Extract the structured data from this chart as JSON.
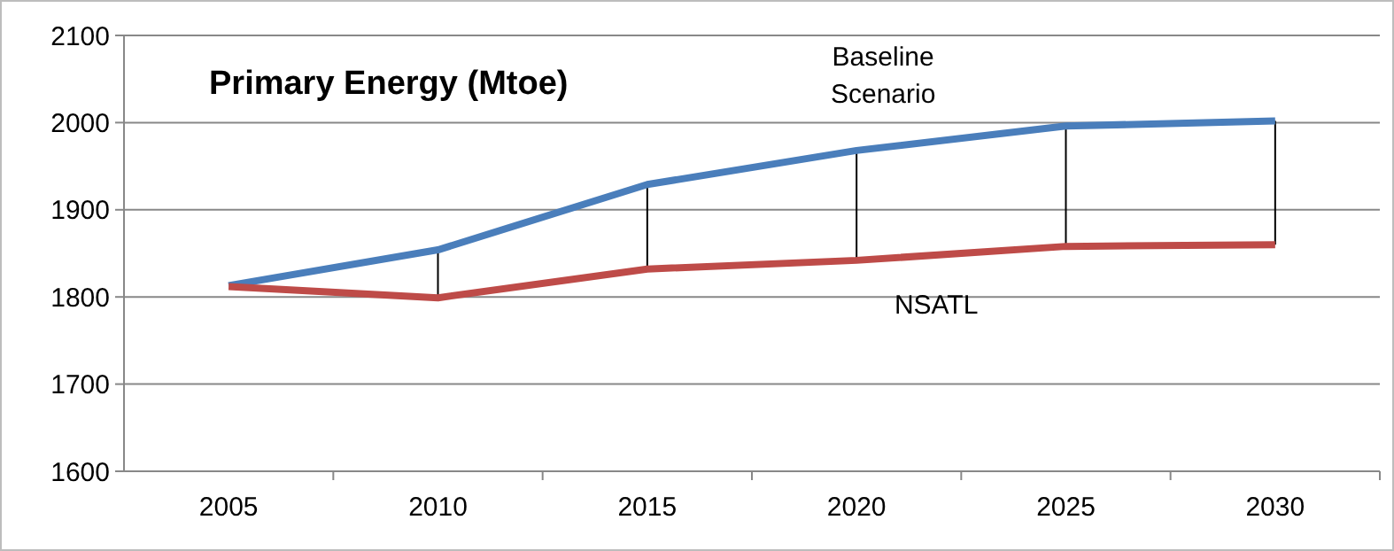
{
  "chart_data": {
    "type": "line",
    "title": "Primary Energy (Mtoe)",
    "categories": [
      "2005",
      "2010",
      "2015",
      "2020",
      "2025",
      "2030"
    ],
    "series": [
      {
        "name": "Baseline Scenario",
        "color": "#4a7ebb",
        "values": [
          1813,
          1854,
          1929,
          1968,
          1996,
          2002
        ]
      },
      {
        "name": "NSATL",
        "color": "#be4b48",
        "values": [
          1812,
          1799,
          1832,
          1842,
          1858,
          1860
        ]
      }
    ],
    "ylim": [
      1600,
      2100
    ],
    "yticks": [
      1600,
      1700,
      1800,
      1900,
      2000,
      2100
    ],
    "grid": "y",
    "legend": false,
    "marker": "none",
    "line_style": "solid"
  }
}
